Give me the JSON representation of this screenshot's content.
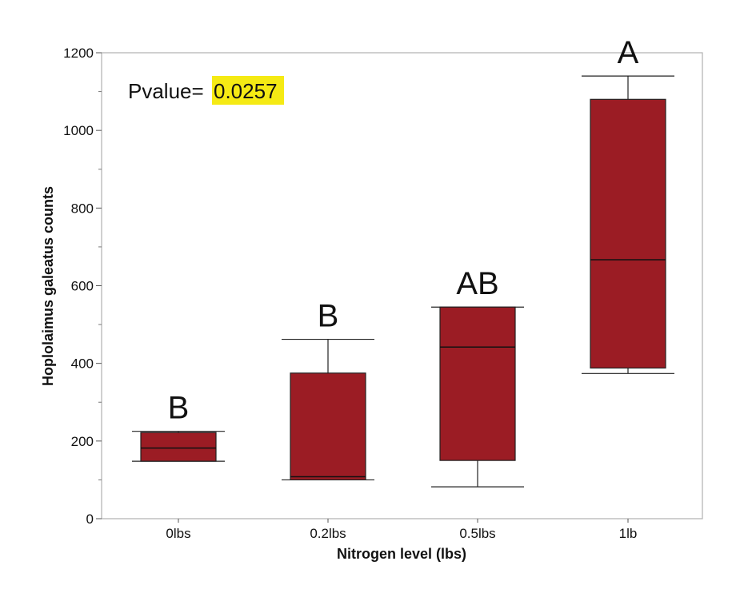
{
  "chart_data": {
    "type": "box",
    "title": "",
    "xlabel": "Nitrogen level (lbs)",
    "ylabel": "Hoplolaimus galeatus counts",
    "ylim": [
      0,
      1200
    ],
    "yticks": [
      0,
      200,
      400,
      600,
      800,
      1000,
      1200
    ],
    "categories": [
      "0lbs",
      "0.2lbs",
      "0.5lbs",
      "1lb"
    ],
    "boxes": [
      {
        "category": "0lbs",
        "min": 148,
        "q1": 148,
        "median": 182,
        "q3": 222,
        "max": 225,
        "letter": "B"
      },
      {
        "category": "0.2lbs",
        "min": 100,
        "q1": 100,
        "median": 108,
        "q3": 375,
        "max": 462,
        "letter": "B"
      },
      {
        "category": "0.5lbs",
        "min": 82,
        "q1": 150,
        "median": 442,
        "q3": 545,
        "max": 545,
        "letter": "AB"
      },
      {
        "category": "1lb",
        "min": 374,
        "q1": 388,
        "median": 667,
        "q3": 1080,
        "max": 1140,
        "letter": "A"
      }
    ],
    "box_color": "#9b1c24",
    "grid": false,
    "annotation": {
      "label": "Pvalue=",
      "value": "0.0257",
      "highlight_color": "#f5ea14"
    }
  }
}
